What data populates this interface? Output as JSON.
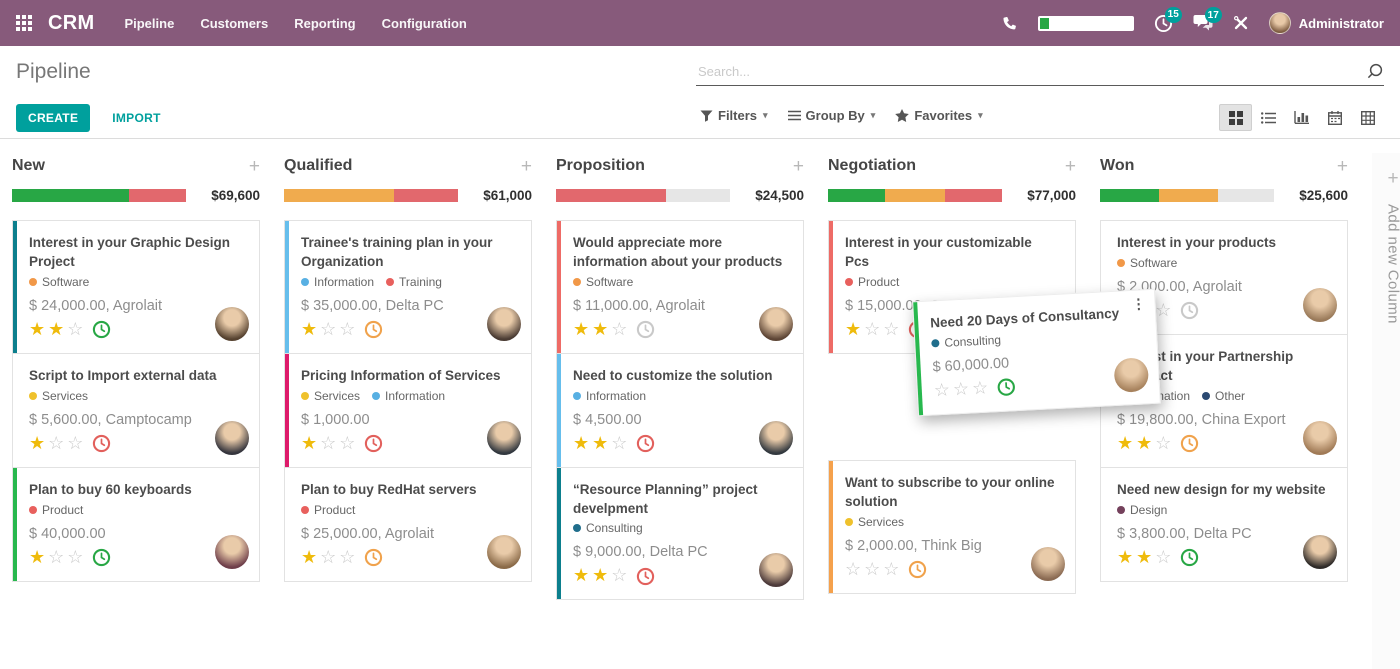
{
  "navbar": {
    "brand": "CRM",
    "menu": [
      "Pipeline",
      "Customers",
      "Reporting",
      "Configuration"
    ],
    "activity_badge": "15",
    "messages_badge": "17",
    "user": "Administrator",
    "colors": {
      "bg": "#875A7B",
      "badge": "#00A09D"
    }
  },
  "control_panel": {
    "title": "Pipeline",
    "create_label": "CREATE",
    "import_label": "IMPORT",
    "search_placeholder": "Search...",
    "filters_label": "Filters",
    "group_by_label": "Group By",
    "favorites_label": "Favorites",
    "views": [
      "kanban",
      "list",
      "graph",
      "calendar",
      "pivot"
    ],
    "active_view": "kanban"
  },
  "board": {
    "add_column_label": "Add new Column",
    "columns": [
      {
        "name": "New",
        "total": "$69,600",
        "progress": [
          {
            "color": "#28A745",
            "pct": 67
          },
          {
            "color": "#E2686D",
            "pct": 33
          }
        ],
        "cards": [
          {
            "title": "Interest in your Graphic Design Project",
            "tags": [
              {
                "label": "Software",
                "color": "#F19848"
              }
            ],
            "amount": "$ 24,000.00, Agrolait",
            "stars": 2,
            "clock_color": "#28A745",
            "bar_color": "#0C7F8D",
            "avatar_color": "#55412f"
          },
          {
            "title": "Script to Import external data",
            "tags": [
              {
                "label": "Services",
                "color": "#EFC12C"
              }
            ],
            "amount": "$ 5,600.00, Camptocamp",
            "stars": 1,
            "clock_color": "#E2605C",
            "bar_color": "",
            "avatar_color": "#35353d"
          },
          {
            "title": "Plan to buy 60 keyboards",
            "tags": [
              {
                "label": "Product",
                "color": "#E8605D"
              }
            ],
            "amount": "$ 40,000.00",
            "stars": 1,
            "clock_color": "#28A745",
            "bar_color": "#28B84E",
            "avatar_color": "#6e3e4a"
          }
        ]
      },
      {
        "name": "Qualified",
        "total": "$61,000",
        "progress": [
          {
            "color": "#F0AB4E",
            "pct": 63
          },
          {
            "color": "#E2686D",
            "pct": 37
          }
        ],
        "cards": [
          {
            "title": "Trainee's training plan in your Organization",
            "tags": [
              {
                "label": "Information",
                "color": "#58B0E3"
              },
              {
                "label": "Training",
                "color": "#E8605D"
              }
            ],
            "amount": "$ 35,000.00, Delta PC",
            "stars": 1,
            "clock_color": "#F0A24C",
            "bar_color": "#66BEEC",
            "avatar_color": "#4a3b33"
          },
          {
            "title": "Pricing Information of Services",
            "tags": [
              {
                "label": "Services",
                "color": "#EFC12C"
              },
              {
                "label": "Information",
                "color": "#58B0E3"
              }
            ],
            "amount": "$ 1,000.00",
            "stars": 1,
            "clock_color": "#E2605C",
            "bar_color": "#DE1B6B",
            "avatar_color": "#32383f"
          },
          {
            "title": "Plan to buy RedHat servers",
            "tags": [
              {
                "label": "Product",
                "color": "#E8605D"
              }
            ],
            "amount": "$ 25,000.00, Agrolait",
            "stars": 1,
            "clock_color": "#F0A24C",
            "bar_color": "",
            "avatar_color": "#8a6a48"
          }
        ]
      },
      {
        "name": "Proposition",
        "total": "$24,500",
        "progress": [
          {
            "color": "#E2686D",
            "pct": 63
          }
        ],
        "cards": [
          {
            "title": "Would appreciate more information about your products",
            "tags": [
              {
                "label": "Software",
                "color": "#F19848"
              }
            ],
            "amount": "$ 11,000.00, Agrolait",
            "stars": 2,
            "clock_color": "#C9C9C9",
            "bar_color": "#EE6B66",
            "avatar_color": "#5d4535"
          },
          {
            "title": "Need to customize the solution",
            "tags": [
              {
                "label": "Information",
                "color": "#58B0E3"
              }
            ],
            "amount": "$ 4,500.00",
            "stars": 2,
            "clock_color": "#E2605C",
            "bar_color": "#66BEEC",
            "avatar_color": "#33393f"
          },
          {
            "title": "“Resource Planning” project develpment",
            "tags": [
              {
                "label": "Consulting",
                "color": "#206E8C"
              }
            ],
            "amount": "$ 9,000.00, Delta PC",
            "stars": 2,
            "clock_color": "#E2605C",
            "bar_color": "#0C7F8D",
            "avatar_color": "#4c3a3a"
          }
        ]
      },
      {
        "name": "Negotiation",
        "total": "$77,000",
        "progress": [
          {
            "color": "#28A745",
            "pct": 33
          },
          {
            "color": "#F0AB4E",
            "pct": 34
          },
          {
            "color": "#E2686D",
            "pct": 33
          }
        ],
        "cards": [
          {
            "title": "Interest in your customizable Pcs",
            "tags": [
              {
                "label": "Product",
                "color": "#E8605D"
              }
            ],
            "amount": "$ 15,000.00, Camptocamp",
            "stars": 1,
            "clock_color": "#E2605C",
            "bar_color": "#EE6B66",
            "avatar_color": "#6b5136"
          },
          {
            "title": "Want to subscribe to your online solution",
            "tags": [
              {
                "label": "Services",
                "color": "#EFC12C"
              }
            ],
            "amount": "$ 2,000.00, Think Big",
            "stars": 0,
            "clock_color": "#F0A24C",
            "bar_color": "#F5A14C",
            "avatar_color": "#8a6a52",
            "gap_before": true
          }
        ]
      },
      {
        "name": "Won",
        "total": "$25,600",
        "progress": [
          {
            "color": "#28A745",
            "pct": 34
          },
          {
            "color": "#F0AB4E",
            "pct": 34
          }
        ],
        "cards": [
          {
            "title": "Interest in your products",
            "tags": [
              {
                "label": "Software",
                "color": "#F19848"
              }
            ],
            "amount": "$ 2,000.00, Agrolait",
            "stars": 1,
            "clock_color": "#C9C9C9",
            "bar_color": "",
            "avatar_color": "#9a7a5a"
          },
          {
            "title": "Interest in your Partnership Contract",
            "tags": [
              {
                "label": "Information",
                "color": "#58B0E3"
              },
              {
                "label": "Other",
                "color": "#2B4A72"
              }
            ],
            "amount": "$ 19,800.00, China Export",
            "stars": 2,
            "clock_color": "#F0A24C",
            "bar_color": "",
            "avatar_color": "#a07a56"
          },
          {
            "title": "Need new design for my website",
            "tags": [
              {
                "label": "Design",
                "color": "#74415C"
              }
            ],
            "amount": "$ 3,800.00, Delta PC",
            "stars": 2,
            "clock_color": "#28A745",
            "bar_color": "",
            "avatar_color": "#2e2a28"
          }
        ]
      }
    ]
  },
  "dragged_card": {
    "title": "Need 20 Days of Consultancy",
    "tags": [
      {
        "label": "Consulting",
        "color": "#206E8C"
      }
    ],
    "amount": "$ 60,000.00",
    "stars": 0,
    "clock_color": "#28A745",
    "bar_color": "#28B84E",
    "avatar_color": "#a8835e"
  }
}
